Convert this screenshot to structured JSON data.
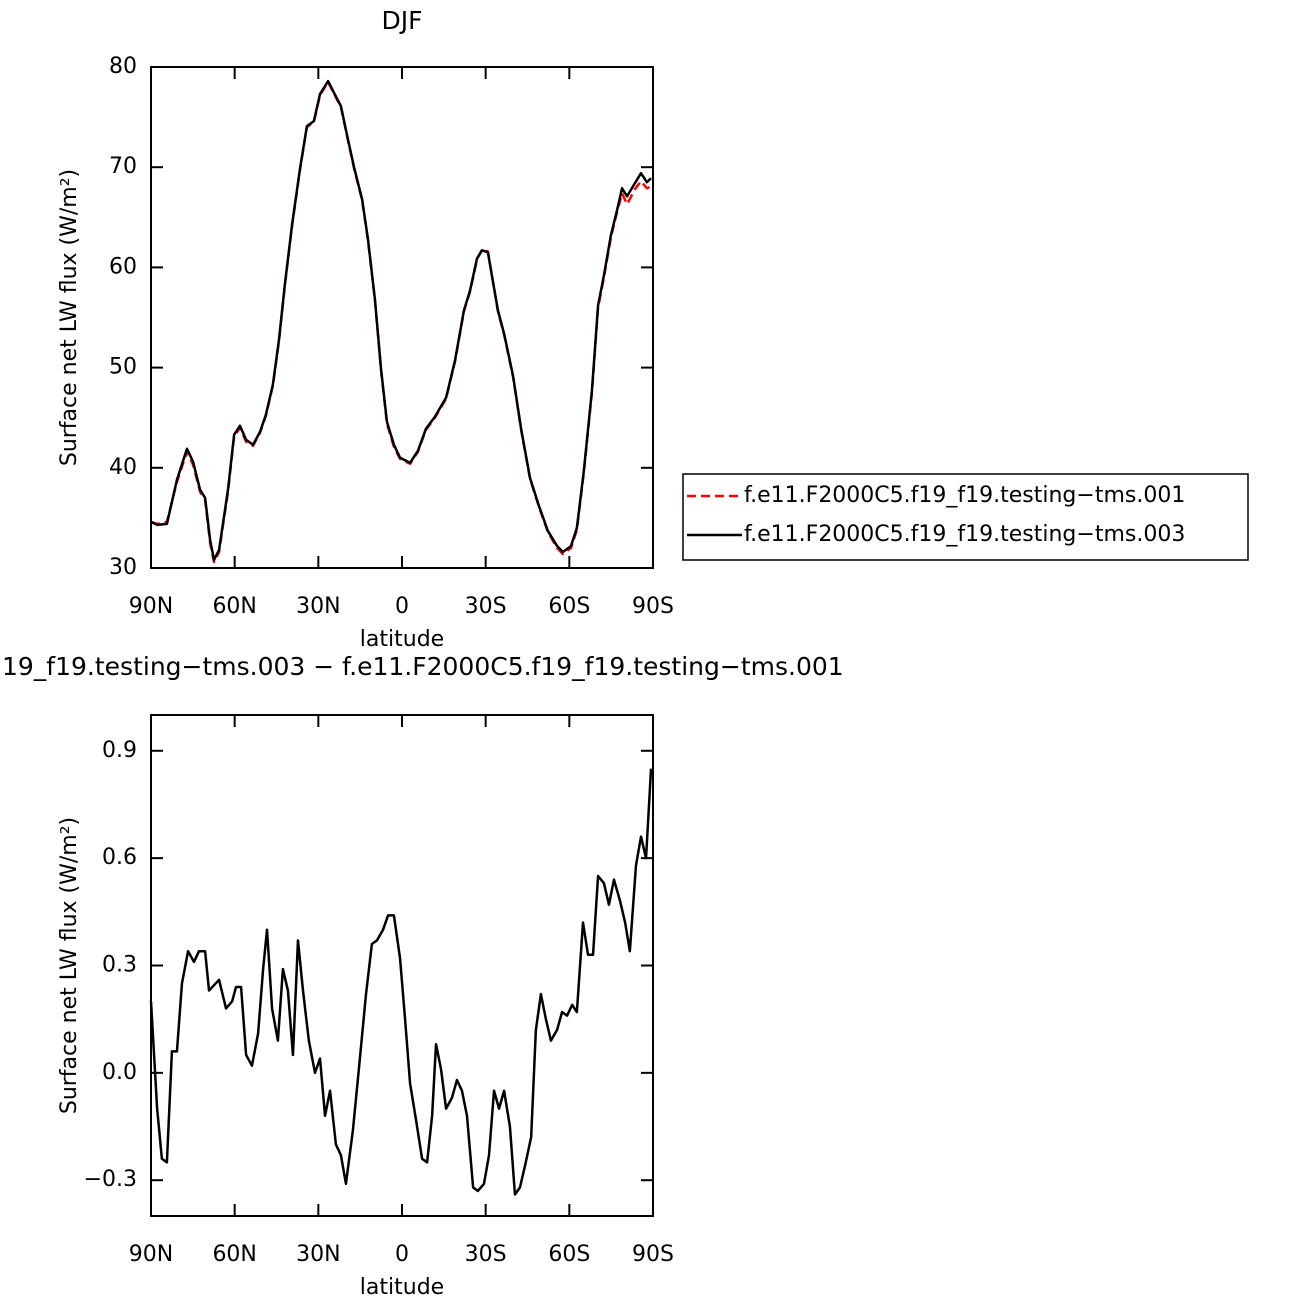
{
  "chart_data": [
    {
      "type": "line",
      "title": "DJF",
      "xlabel": "latitude",
      "ylabel": "Surface net LW flux (W/m²)",
      "x": [
        90,
        87.8,
        84.3,
        80.7,
        77.1,
        74.9,
        72.4,
        70.6,
        68.8,
        67.4,
        65.6,
        62.4,
        60.2,
        58.1,
        55.9,
        53.4,
        50.9,
        48.8,
        46.3,
        44.1,
        42,
        39.4,
        36.6,
        34.1,
        31.6,
        29.4,
        26.5,
        24.7,
        21.9,
        19.4,
        17.2,
        14.3,
        12.2,
        9.7,
        7.5,
        5.4,
        2.9,
        0.7,
        -2.9,
        -5.7,
        -8.6,
        -11.8,
        -15.8,
        -19,
        -22.2,
        -24.4,
        -26.9,
        -28.7,
        -30.8,
        -34.4,
        -36.6,
        -39.8,
        -42.7,
        -45.9,
        -49.1,
        -52.3,
        -55.6,
        -57.7,
        -60.6,
        -62.7,
        -65.2,
        -68.1,
        -70.3,
        -72.4,
        -74.9,
        -77.1,
        -78.9,
        -80.7,
        -83.5,
        -85.7,
        -87.8,
        -89.3
      ],
      "series": [
        {
          "name": "f.e11.F2000C5.f19_f19.testing−tms.001",
          "color": "#ff0000",
          "dash": true,
          "values": [
            34.6,
            34.4,
            34.6,
            38.6,
            41.6,
            40.3,
            37.6,
            36.8,
            32.5,
            30.6,
            31.6,
            37.6,
            43.1,
            44.0,
            42.6,
            42.2,
            43.5,
            45.2,
            48.2,
            52.7,
            58.2,
            64.2,
            69.7,
            74.0,
            74.5,
            77.2,
            78.5,
            77.5,
            76.0,
            72.7,
            69.9,
            66.7,
            62.7,
            56.7,
            49.7,
            44.4,
            42.1,
            40.9,
            40.4,
            41.6,
            43.8,
            45.0,
            46.9,
            50.6,
            55.6,
            57.6,
            60.8,
            61.8,
            61.6,
            55.6,
            53.3,
            49.1,
            43.8,
            38.9,
            36.1,
            33.6,
            32.0,
            31.4,
            32.0,
            33.8,
            39.5,
            47.5,
            56.0,
            59.0,
            63.0,
            65.5,
            67.4,
            66.3,
            67.8,
            68.6,
            67.9,
            68.1
          ]
        },
        {
          "name": "f.e11.F2000C5.f19_f19.testing−tms.003",
          "color": "#000000",
          "dash": false,
          "values": [
            34.6,
            34.3,
            34.4,
            38.8,
            41.9,
            40.6,
            37.8,
            37.0,
            32.8,
            30.8,
            31.8,
            37.8,
            43.3,
            44.2,
            42.8,
            42.3,
            43.6,
            45.3,
            48.3,
            52.8,
            58.3,
            64.3,
            69.8,
            74.1,
            74.6,
            77.3,
            78.6,
            77.6,
            76.1,
            72.8,
            70.0,
            66.8,
            62.8,
            56.8,
            49.8,
            44.6,
            42.3,
            41.0,
            40.5,
            41.7,
            43.9,
            45.1,
            47.0,
            50.7,
            55.7,
            57.7,
            60.9,
            61.7,
            61.5,
            55.7,
            53.4,
            49.2,
            43.9,
            39.0,
            36.2,
            33.7,
            32.2,
            31.6,
            32.2,
            34.0,
            39.7,
            47.7,
            56.2,
            59.2,
            63.2,
            65.7,
            67.9,
            67.1,
            68.4,
            69.4,
            68.5,
            68.9
          ]
        }
      ],
      "xlim": [
        90,
        -90
      ],
      "xticks": [
        {
          "value": 90,
          "label": "90N"
        },
        {
          "value": 60,
          "label": "60N"
        },
        {
          "value": 30,
          "label": "30N"
        },
        0,
        {
          "value": -30,
          "label": "30S"
        },
        {
          "value": -60,
          "label": "60S"
        },
        {
          "value": -90,
          "label": "90S"
        }
      ],
      "ylim": [
        30,
        80
      ],
      "yticks": [
        30,
        40,
        50,
        60,
        70,
        80
      ],
      "legend": "right"
    },
    {
      "type": "line",
      "title": "19_f19.testing−tms.003 − f.e11.F2000C5.f19_f19.testing−tms.001",
      "xlabel": "latitude",
      "ylabel": "Surface net LW flux (W/m²)",
      "x": [
        90,
        87.8,
        86.1,
        84.3,
        82.5,
        80.7,
        78.9,
        76.7,
        74.6,
        72.8,
        70.6,
        69.2,
        65.6,
        63.1,
        60.9,
        59.5,
        57.7,
        55.9,
        53.8,
        51.6,
        49.8,
        48.4,
        46.6,
        44.5,
        42.7,
        40.9,
        39.1,
        37.3,
        35.5,
        33.4,
        31.2,
        29.4,
        27.6,
        25.8,
        23.7,
        21.9,
        20.1,
        17.6,
        15.1,
        12.9,
        10.8,
        9,
        6.8,
        5,
        2.9,
        0.7,
        -1.1,
        -2.9,
        -5,
        -7.2,
        -9,
        -10.8,
        -12.2,
        -14,
        -15.8,
        -17.9,
        -19.7,
        -21.5,
        -23.3,
        -25.5,
        -27.2,
        -29.4,
        -31.2,
        -33,
        -34.8,
        -36.6,
        -38.7,
        -40.5,
        -42.3,
        -44.1,
        -46.3,
        -48,
        -49.8,
        -51.6,
        -53.4,
        -55.6,
        -57.4,
        -59.2,
        -61,
        -62.7,
        -64.9,
        -66.7,
        -68.5,
        -70.3,
        -72.4,
        -74.2,
        -76,
        -78.2,
        -80,
        -81.7,
        -83.9,
        -85.7,
        -87.5,
        -89.3
      ],
      "values": [
        0.2,
        -0.1,
        -0.24,
        -0.25,
        0.06,
        0.06,
        0.25,
        0.34,
        0.31,
        0.34,
        0.34,
        0.23,
        0.26,
        0.18,
        0.2,
        0.24,
        0.24,
        0.05,
        0.02,
        0.11,
        0.29,
        0.4,
        0.18,
        0.09,
        0.29,
        0.23,
        0.05,
        0.37,
        0.23,
        0.09,
        0,
        0.04,
        -0.12,
        -0.05,
        -0.2,
        -0.23,
        -0.31,
        -0.16,
        0.04,
        0.22,
        0.36,
        0.37,
        0.4,
        0.44,
        0.44,
        0.32,
        0.15,
        -0.03,
        -0.13,
        -0.24,
        -0.25,
        -0.12,
        0.08,
        0.01,
        -0.1,
        -0.07,
        -0.02,
        -0.05,
        -0.12,
        -0.32,
        -0.33,
        -0.31,
        -0.23,
        -0.05,
        -0.1,
        -0.05,
        -0.15,
        -0.34,
        -0.32,
        -0.26,
        -0.18,
        0.12,
        0.22,
        0.15,
        0.09,
        0.12,
        0.17,
        0.16,
        0.19,
        0.17,
        0.42,
        0.33,
        0.33,
        0.55,
        0.53,
        0.47,
        0.54,
        0.48,
        0.42,
        0.34,
        0.58,
        0.66,
        0.6,
        0.85
      ],
      "color": "#000000",
      "xlim": [
        90,
        -90
      ],
      "xticks": [
        {
          "value": 90,
          "label": "90N"
        },
        {
          "value": 60,
          "label": "60N"
        },
        {
          "value": 30,
          "label": "30N"
        },
        0,
        {
          "value": -30,
          "label": "30S"
        },
        {
          "value": -60,
          "label": "60S"
        },
        {
          "value": -90,
          "label": "90S"
        }
      ],
      "ylim": [
        -0.4,
        1.0
      ],
      "yticks": [
        {
          "value": -0.3,
          "label": "−0.3"
        },
        {
          "value": 0,
          "label": "0.0"
        },
        0.3,
        0.6,
        0.9
      ]
    }
  ]
}
